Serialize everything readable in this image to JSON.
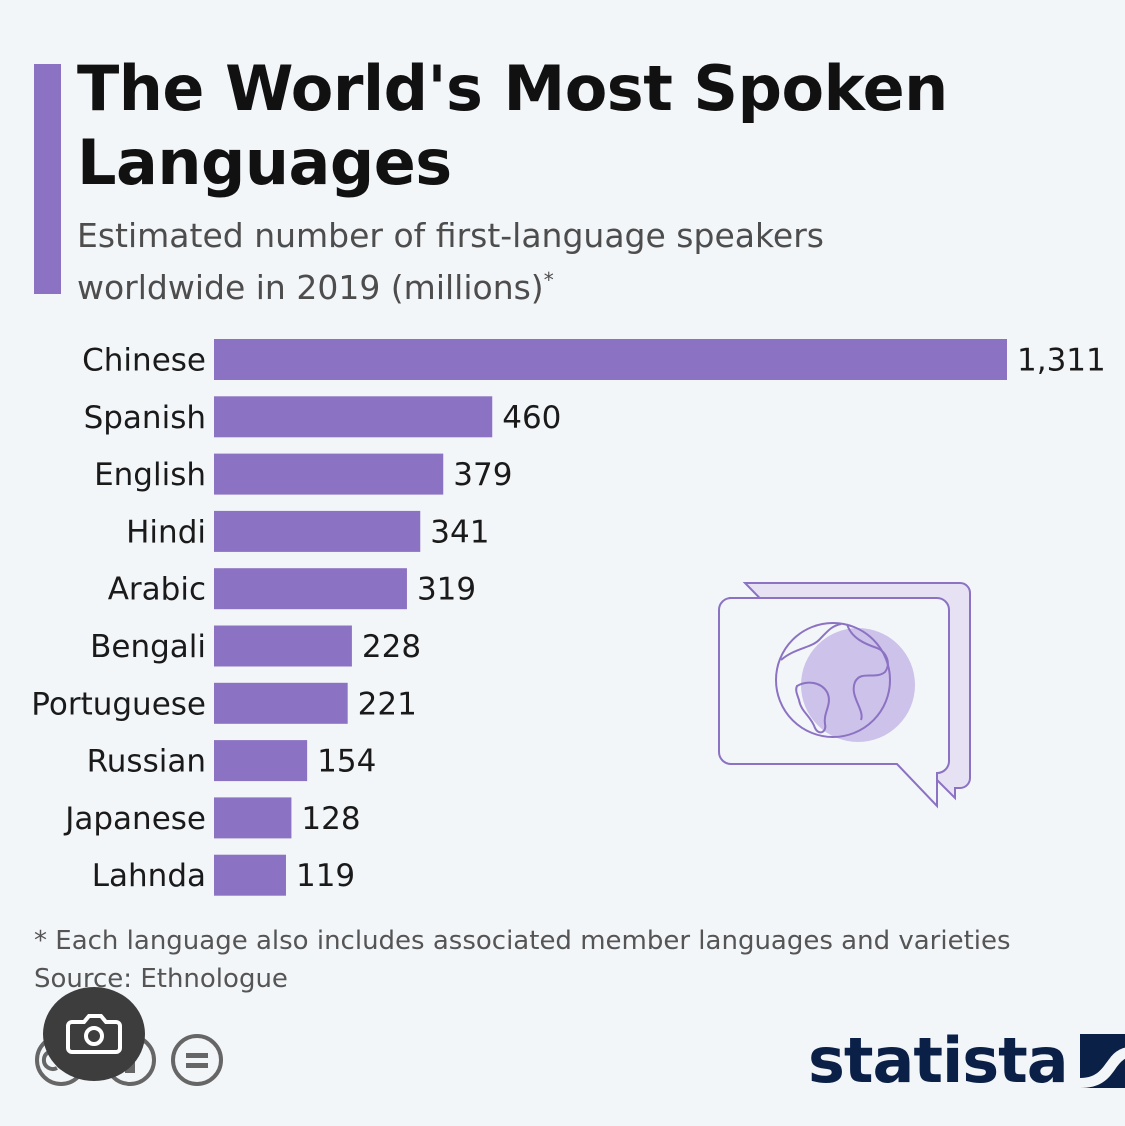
{
  "header": {
    "title": "The World's Most Spoken Languages",
    "subtitle": "Estimated number of first-language speakers worldwide in 2019 (millions)",
    "subtitle_mark": "*"
  },
  "chart_data": {
    "type": "bar",
    "orientation": "horizontal",
    "title": "The World's Most Spoken Languages",
    "subtitle": "Estimated number of first-language speakers worldwide in 2019 (millions)*",
    "categories": [
      "Chinese",
      "Spanish",
      "English",
      "Hindi",
      "Arabic",
      "Bengali",
      "Portuguese",
      "Russian",
      "Japanese",
      "Lahnda"
    ],
    "values": [
      1311,
      460,
      379,
      341,
      319,
      228,
      221,
      154,
      128,
      119
    ],
    "value_labels": [
      "1,311",
      "460",
      "379",
      "341",
      "319",
      "228",
      "221",
      "154",
      "128",
      "119"
    ],
    "xlabel": "",
    "ylabel": "",
    "xlim": [
      0,
      1311
    ],
    "grid": false,
    "bar_color": "#8c72c2"
  },
  "footer": {
    "note": "* Each language also includes associated member languages and varieties",
    "source": "Source: Ethnologue"
  },
  "brand": {
    "name": "statista",
    "accent_color": "#8c72c2",
    "logo_color": "#0b2046"
  },
  "icons": {
    "illustration": "speech-bubble-globe-icon",
    "license": [
      "cc-icon",
      "by-icon",
      "equal-icon"
    ],
    "overlay": "camera-icon"
  }
}
